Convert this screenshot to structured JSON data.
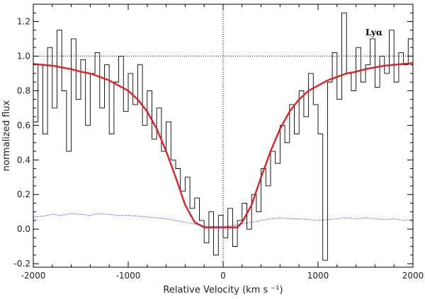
{
  "chart_data": {
    "type": "line",
    "title": "",
    "xlabel": "Relative Velocity (km s ⁻¹)",
    "ylabel": "normalized flux",
    "xlim": [
      -2000,
      2000
    ],
    "ylim": [
      -0.22,
      1.3
    ],
    "x_ticks": [
      -2000,
      -1000,
      0,
      1000,
      2000
    ],
    "x_tick_labels": [
      "-2000",
      "-1000",
      "0",
      "1000",
      "2000"
    ],
    "y_ticks": [
      -0.2,
      0.0,
      0.2,
      0.4,
      0.6,
      0.8,
      1.0,
      1.2
    ],
    "y_tick_labels": [
      "-0.2",
      "0.0",
      "0.2",
      "0.4",
      "0.6",
      "0.8",
      "1.0",
      "1.2"
    ],
    "annotation": "Lyα",
    "reference_lines": {
      "continuum_y": 1.0,
      "zero_velocity_x": 0
    },
    "colors": {
      "flux": "#000000",
      "model": "#e02020",
      "error": "#2020d0",
      "ref": "#000000"
    },
    "series": [
      {
        "name": "flux",
        "style": "step",
        "color": "#000000",
        "x": [
          -2000,
          -1950,
          -1900,
          -1850,
          -1800,
          -1750,
          -1700,
          -1650,
          -1600,
          -1550,
          -1500,
          -1450,
          -1400,
          -1350,
          -1300,
          -1250,
          -1200,
          -1150,
          -1100,
          -1050,
          -1000,
          -950,
          -900,
          -850,
          -800,
          -750,
          -700,
          -650,
          -600,
          -550,
          -500,
          -450,
          -400,
          -350,
          -300,
          -250,
          -200,
          -150,
          -100,
          -50,
          0,
          50,
          100,
          150,
          200,
          250,
          300,
          350,
          400,
          450,
          500,
          550,
          600,
          650,
          700,
          750,
          800,
          850,
          900,
          950,
          1000,
          1050,
          1100,
          1150,
          1200,
          1250,
          1300,
          1350,
          1400,
          1450,
          1500,
          1550,
          1600,
          1650,
          1700,
          1750,
          1800,
          1850,
          1900,
          1950,
          2000
        ],
        "y": [
          0.62,
          0.95,
          0.55,
          1.05,
          0.7,
          1.15,
          0.8,
          0.45,
          1.1,
          0.75,
          0.98,
          0.6,
          0.9,
          1.02,
          0.7,
          0.95,
          0.55,
          0.85,
          1.0,
          0.68,
          0.9,
          0.72,
          0.95,
          0.6,
          0.8,
          0.52,
          0.7,
          0.45,
          0.62,
          0.4,
          0.35,
          0.22,
          0.3,
          0.12,
          0.18,
          0.05,
          -0.08,
          0.1,
          -0.15,
          0.08,
          -0.05,
          0.12,
          -0.1,
          0.05,
          0.15,
          0.0,
          0.2,
          0.1,
          0.35,
          0.25,
          0.45,
          0.38,
          0.6,
          0.5,
          0.72,
          0.55,
          0.8,
          0.65,
          0.9,
          0.72,
          0.55,
          -0.18,
          0.85,
          1.02,
          0.75,
          1.25,
          0.9,
          0.8,
          1.05,
          0.85,
          0.95,
          1.1,
          0.82,
          1.0,
          0.9,
          1.15,
          0.85,
          1.02,
          0.95,
          1.1,
          0.88
        ]
      },
      {
        "name": "model",
        "style": "line",
        "color": "#e02020",
        "x": [
          -2000,
          -1900,
          -1800,
          -1700,
          -1600,
          -1500,
          -1400,
          -1300,
          -1200,
          -1100,
          -1000,
          -900,
          -800,
          -700,
          -600,
          -500,
          -400,
          -300,
          -200,
          -150,
          -100,
          0,
          100,
          150,
          200,
          300,
          400,
          500,
          600,
          700,
          800,
          900,
          1000,
          1100,
          1200,
          1300,
          1400,
          1500,
          1600,
          1700,
          1800,
          1900,
          2000
        ],
        "y": [
          0.955,
          0.95,
          0.945,
          0.935,
          0.925,
          0.91,
          0.9,
          0.88,
          0.86,
          0.83,
          0.8,
          0.75,
          0.68,
          0.58,
          0.45,
          0.3,
          0.14,
          0.04,
          0.01,
          0.01,
          0.01,
          0.01,
          0.01,
          0.01,
          0.04,
          0.14,
          0.3,
          0.45,
          0.58,
          0.68,
          0.75,
          0.8,
          0.83,
          0.86,
          0.88,
          0.9,
          0.91,
          0.925,
          0.935,
          0.945,
          0.95,
          0.955,
          0.96
        ]
      },
      {
        "name": "error",
        "style": "dotted",
        "color": "#2020d0",
        "x": [
          -2000,
          -1900,
          -1800,
          -1700,
          -1600,
          -1500,
          -1400,
          -1300,
          -1200,
          -1100,
          -1000,
          -900,
          -800,
          -700,
          -600,
          -500,
          -400,
          -300,
          -200,
          -100,
          0,
          100,
          200,
          300,
          400,
          500,
          600,
          700,
          800,
          900,
          1000,
          1100,
          1200,
          1300,
          1400,
          1500,
          1600,
          1700,
          1800,
          1900,
          2000
        ],
        "y": [
          0.07,
          0.075,
          0.085,
          0.08,
          0.09,
          0.085,
          0.08,
          0.09,
          0.085,
          0.08,
          0.08,
          0.075,
          0.07,
          0.065,
          0.06,
          0.05,
          0.04,
          0.03,
          0.02,
          0.015,
          0.015,
          0.02,
          0.03,
          0.04,
          0.05,
          0.06,
          0.065,
          0.06,
          0.06,
          0.055,
          0.05,
          0.055,
          0.06,
          0.065,
          0.06,
          0.065,
          0.06,
          0.055,
          0.06,
          0.05,
          0.055
        ]
      }
    ]
  }
}
